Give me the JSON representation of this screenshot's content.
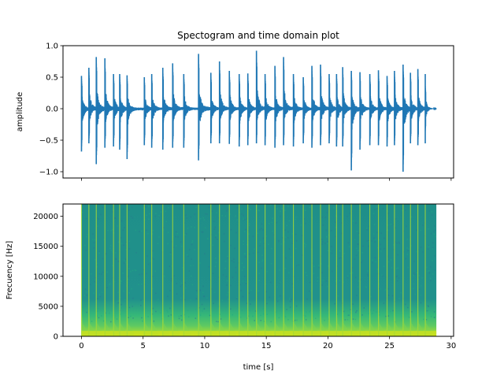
{
  "title": "Spectogram and time domain plot",
  "chart_data": [
    {
      "type": "line",
      "title": "Spectogram and time domain plot",
      "xlabel": "",
      "ylabel": "amplitude",
      "xlim": [
        -1.5,
        30.2
      ],
      "ylim": [
        -1.1,
        1.0
      ],
      "yticks": [
        1.0,
        0.5,
        0.0,
        -0.5,
        -1.0
      ],
      "ytick_labels": [
        "1.0",
        "0.5",
        "0.0",
        "−0.5",
        "−1.0"
      ],
      "xticks": [
        0,
        5,
        10,
        15,
        20,
        25,
        30
      ],
      "xtick_labels_visible": false,
      "signal_duration_s": 28.8,
      "color": "#1f77b4",
      "transients": [
        {
          "t": 0.0,
          "pos": 0.52,
          "neg": -0.68
        },
        {
          "t": 0.6,
          "pos": 0.65,
          "neg": -0.55
        },
        {
          "t": 1.2,
          "pos": 0.82,
          "neg": -0.88
        },
        {
          "t": 1.9,
          "pos": 0.8,
          "neg": -0.62
        },
        {
          "t": 2.6,
          "pos": 0.55,
          "neg": -0.6
        },
        {
          "t": 3.1,
          "pos": 0.55,
          "neg": -0.65
        },
        {
          "t": 3.7,
          "pos": 0.53,
          "neg": -0.8
        },
        {
          "t": 5.1,
          "pos": 0.5,
          "neg": -0.58
        },
        {
          "t": 5.7,
          "pos": 0.55,
          "neg": -0.62
        },
        {
          "t": 6.6,
          "pos": 0.65,
          "neg": -0.65
        },
        {
          "t": 7.4,
          "pos": 0.72,
          "neg": -0.62
        },
        {
          "t": 8.3,
          "pos": 0.55,
          "neg": -0.62
        },
        {
          "t": 9.5,
          "pos": 0.87,
          "neg": -0.82
        },
        {
          "t": 10.5,
          "pos": 0.57,
          "neg": -0.55
        },
        {
          "t": 11.2,
          "pos": 0.75,
          "neg": -0.55
        },
        {
          "t": 12.0,
          "pos": 0.6,
          "neg": -0.56
        },
        {
          "t": 12.8,
          "pos": 0.55,
          "neg": -0.6
        },
        {
          "t": 13.5,
          "pos": 0.56,
          "neg": -0.58
        },
        {
          "t": 14.2,
          "pos": 0.92,
          "neg": -0.55
        },
        {
          "t": 14.9,
          "pos": 0.55,
          "neg": -0.58
        },
        {
          "t": 15.7,
          "pos": 0.68,
          "neg": -0.62
        },
        {
          "t": 16.4,
          "pos": 0.82,
          "neg": -0.58
        },
        {
          "t": 17.2,
          "pos": 0.55,
          "neg": -0.6
        },
        {
          "t": 18.0,
          "pos": 0.5,
          "neg": -0.55
        },
        {
          "t": 18.7,
          "pos": 0.68,
          "neg": -0.62
        },
        {
          "t": 19.4,
          "pos": 0.7,
          "neg": -0.58
        },
        {
          "t": 20.1,
          "pos": 0.55,
          "neg": -0.55
        },
        {
          "t": 20.7,
          "pos": 0.55,
          "neg": -0.6
        },
        {
          "t": 21.2,
          "pos": 0.66,
          "neg": -0.6
        },
        {
          "t": 21.9,
          "pos": 0.6,
          "neg": -0.98
        },
        {
          "t": 22.6,
          "pos": 0.58,
          "neg": -0.65
        },
        {
          "t": 23.4,
          "pos": 0.55,
          "neg": -0.58
        },
        {
          "t": 24.1,
          "pos": 0.61,
          "neg": -0.58
        },
        {
          "t": 24.8,
          "pos": 0.52,
          "neg": -0.6
        },
        {
          "t": 25.4,
          "pos": 0.6,
          "neg": -0.58
        },
        {
          "t": 26.1,
          "pos": 0.7,
          "neg": -1.0
        },
        {
          "t": 26.7,
          "pos": 0.57,
          "neg": -0.55
        },
        {
          "t": 27.3,
          "pos": 0.63,
          "neg": -0.58
        },
        {
          "t": 27.9,
          "pos": 0.55,
          "neg": -0.55
        }
      ]
    },
    {
      "type": "heatmap",
      "title": "",
      "xlabel": "time [s]",
      "ylabel": "Frecuency [Hz]",
      "xlim": [
        -1.5,
        30.2
      ],
      "ylim": [
        0,
        22050
      ],
      "xticks": [
        0,
        5,
        10,
        15,
        20,
        25,
        30
      ],
      "xtick_labels": [
        "0",
        "5",
        "10",
        "15",
        "20",
        "25",
        "30"
      ],
      "yticks": [
        0,
        5000,
        10000,
        15000,
        20000
      ],
      "ytick_labels": [
        "0",
        "5000",
        "10000",
        "15000",
        "20000"
      ],
      "signal_duration_s": 28.8,
      "colormap": "viridis",
      "background_color": "#1f9a8a",
      "low_freq_color": "#c8e020",
      "onset_line_color": "#a8db34",
      "onsets": [
        0.0,
        0.6,
        1.2,
        1.9,
        2.6,
        3.1,
        3.7,
        5.1,
        5.7,
        6.6,
        7.4,
        8.3,
        9.5,
        10.5,
        11.2,
        12.0,
        12.8,
        13.5,
        14.2,
        14.9,
        15.7,
        16.4,
        17.2,
        18.0,
        18.7,
        19.4,
        20.1,
        20.7,
        21.2,
        21.9,
        22.6,
        23.4,
        24.1,
        24.8,
        25.4,
        26.1,
        26.7,
        27.3,
        27.9
      ]
    }
  ]
}
